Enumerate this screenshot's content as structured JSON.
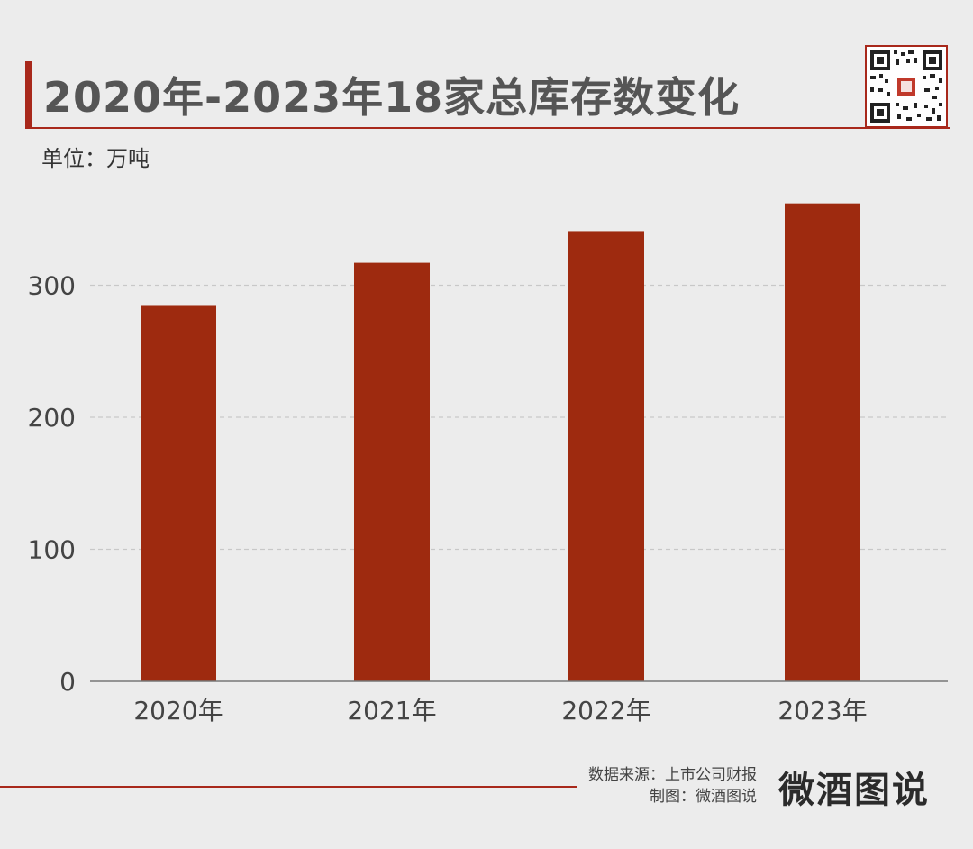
{
  "header": {
    "title": "2020年-2023年18家总库存数变化",
    "unit": "单位：万吨"
  },
  "footer": {
    "source_line": "数据来源：上市公司财报",
    "credit_line": "制图：微酒图说",
    "brand": "微酒图说"
  },
  "colors": {
    "bar": "#9e2a0f",
    "accent": "#a8281b",
    "grid": "#c8c8c8",
    "axis": "#777777",
    "tick_text": "#444444"
  },
  "chart_data": {
    "type": "bar",
    "categories": [
      "2020年",
      "2021年",
      "2022年",
      "2023年"
    ],
    "values": [
      285,
      317,
      341,
      362
    ],
    "title": "2020年-2023年18家总库存数变化",
    "ylabel": "单位：万吨",
    "ylim": [
      0,
      400
    ],
    "yticks": [
      0,
      100,
      200,
      300
    ],
    "grid": true,
    "legend": "none"
  }
}
